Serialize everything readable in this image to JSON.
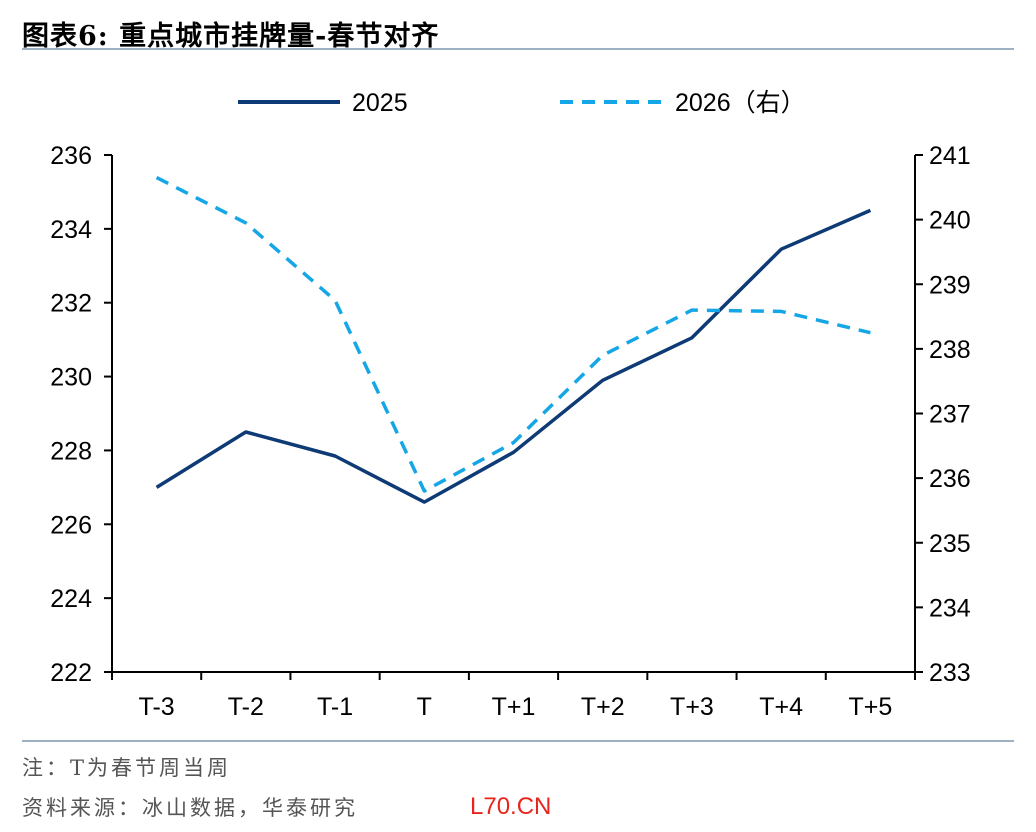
{
  "header": {
    "title": "图表6:   重点城市挂牌量-春节对齐"
  },
  "footer": {
    "note": "注：T为春节周当周",
    "source": "资料来源：冰山数据，华泰研究",
    "watermark": "L70.CN"
  },
  "chart_data": {
    "type": "line",
    "title": "",
    "categories": [
      "T-3",
      "T-2",
      "T-1",
      "T",
      "T+1",
      "T+2",
      "T+3",
      "T+4",
      "T+5"
    ],
    "series": [
      {
        "name": "2025",
        "axis": "left",
        "style": "solid",
        "color": "#0e3a75",
        "values": [
          227.0,
          228.5,
          227.85,
          226.6,
          227.95,
          229.9,
          231.05,
          233.45,
          234.5
        ]
      },
      {
        "name": "2026（右）",
        "axis": "right",
        "style": "dashed",
        "color": "#14a6e6",
        "values": [
          240.65,
          239.95,
          238.75,
          235.8,
          236.55,
          237.9,
          238.6,
          238.58,
          238.25
        ]
      }
    ],
    "y_left": {
      "min": 222,
      "max": 236,
      "ticks": [
        "222",
        "224",
        "226",
        "228",
        "230",
        "232",
        "234",
        "236"
      ]
    },
    "y_right": {
      "min": 233,
      "max": 241,
      "ticks": [
        "233",
        "234",
        "235",
        "236",
        "237",
        "238",
        "239",
        "240",
        "241"
      ]
    },
    "legend": "top-center",
    "grid": false
  }
}
